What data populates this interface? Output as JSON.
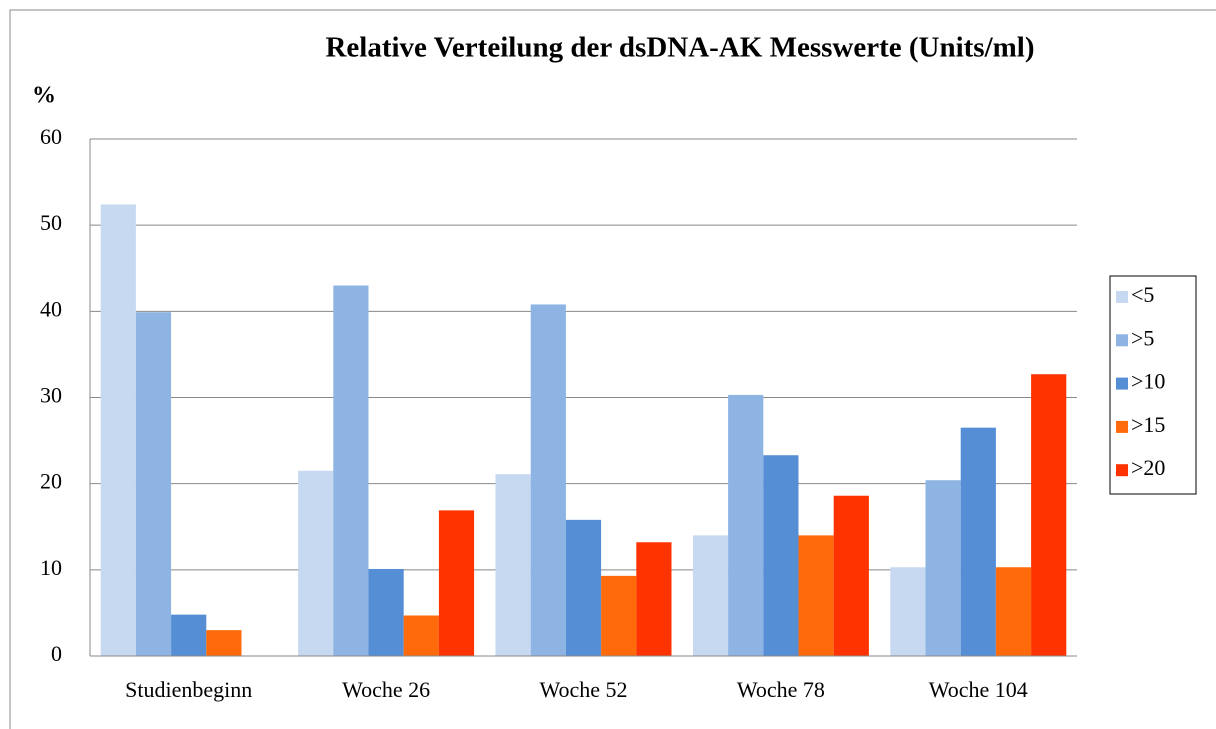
{
  "chart_data": {
    "type": "bar",
    "title": "Relative Verteilung der dsDNA-AK Messwerte (Units/ml)",
    "y_label": "%",
    "categories": [
      "Studienbeginn",
      "Woche 26",
      "Woche 52",
      "Woche 78",
      "Woche 104"
    ],
    "series": [
      {
        "name": "<5",
        "color": "#c6d9f1",
        "values": [
          52.4,
          21.5,
          21.1,
          14.0,
          10.3
        ]
      },
      {
        "name": ">5",
        "color": "#8eb4e3",
        "values": [
          39.9,
          43.0,
          40.8,
          30.3,
          20.4
        ]
      },
      {
        "name": ">10",
        "color": "#558ed5",
        "values": [
          4.8,
          10.1,
          15.8,
          23.3,
          26.5
        ]
      },
      {
        "name": ">15",
        "color": "#ff6a0a",
        "values": [
          3.0,
          4.7,
          9.3,
          14.0,
          10.3
        ]
      },
      {
        "name": ">20",
        "color": "#ff3300",
        "values": [
          0,
          16.9,
          13.2,
          18.6,
          32.7
        ]
      }
    ],
    "ylim": [
      0,
      60
    ],
    "yticks": [
      0,
      10,
      20,
      30,
      40,
      50,
      60
    ],
    "grid": true,
    "legend": "right"
  }
}
